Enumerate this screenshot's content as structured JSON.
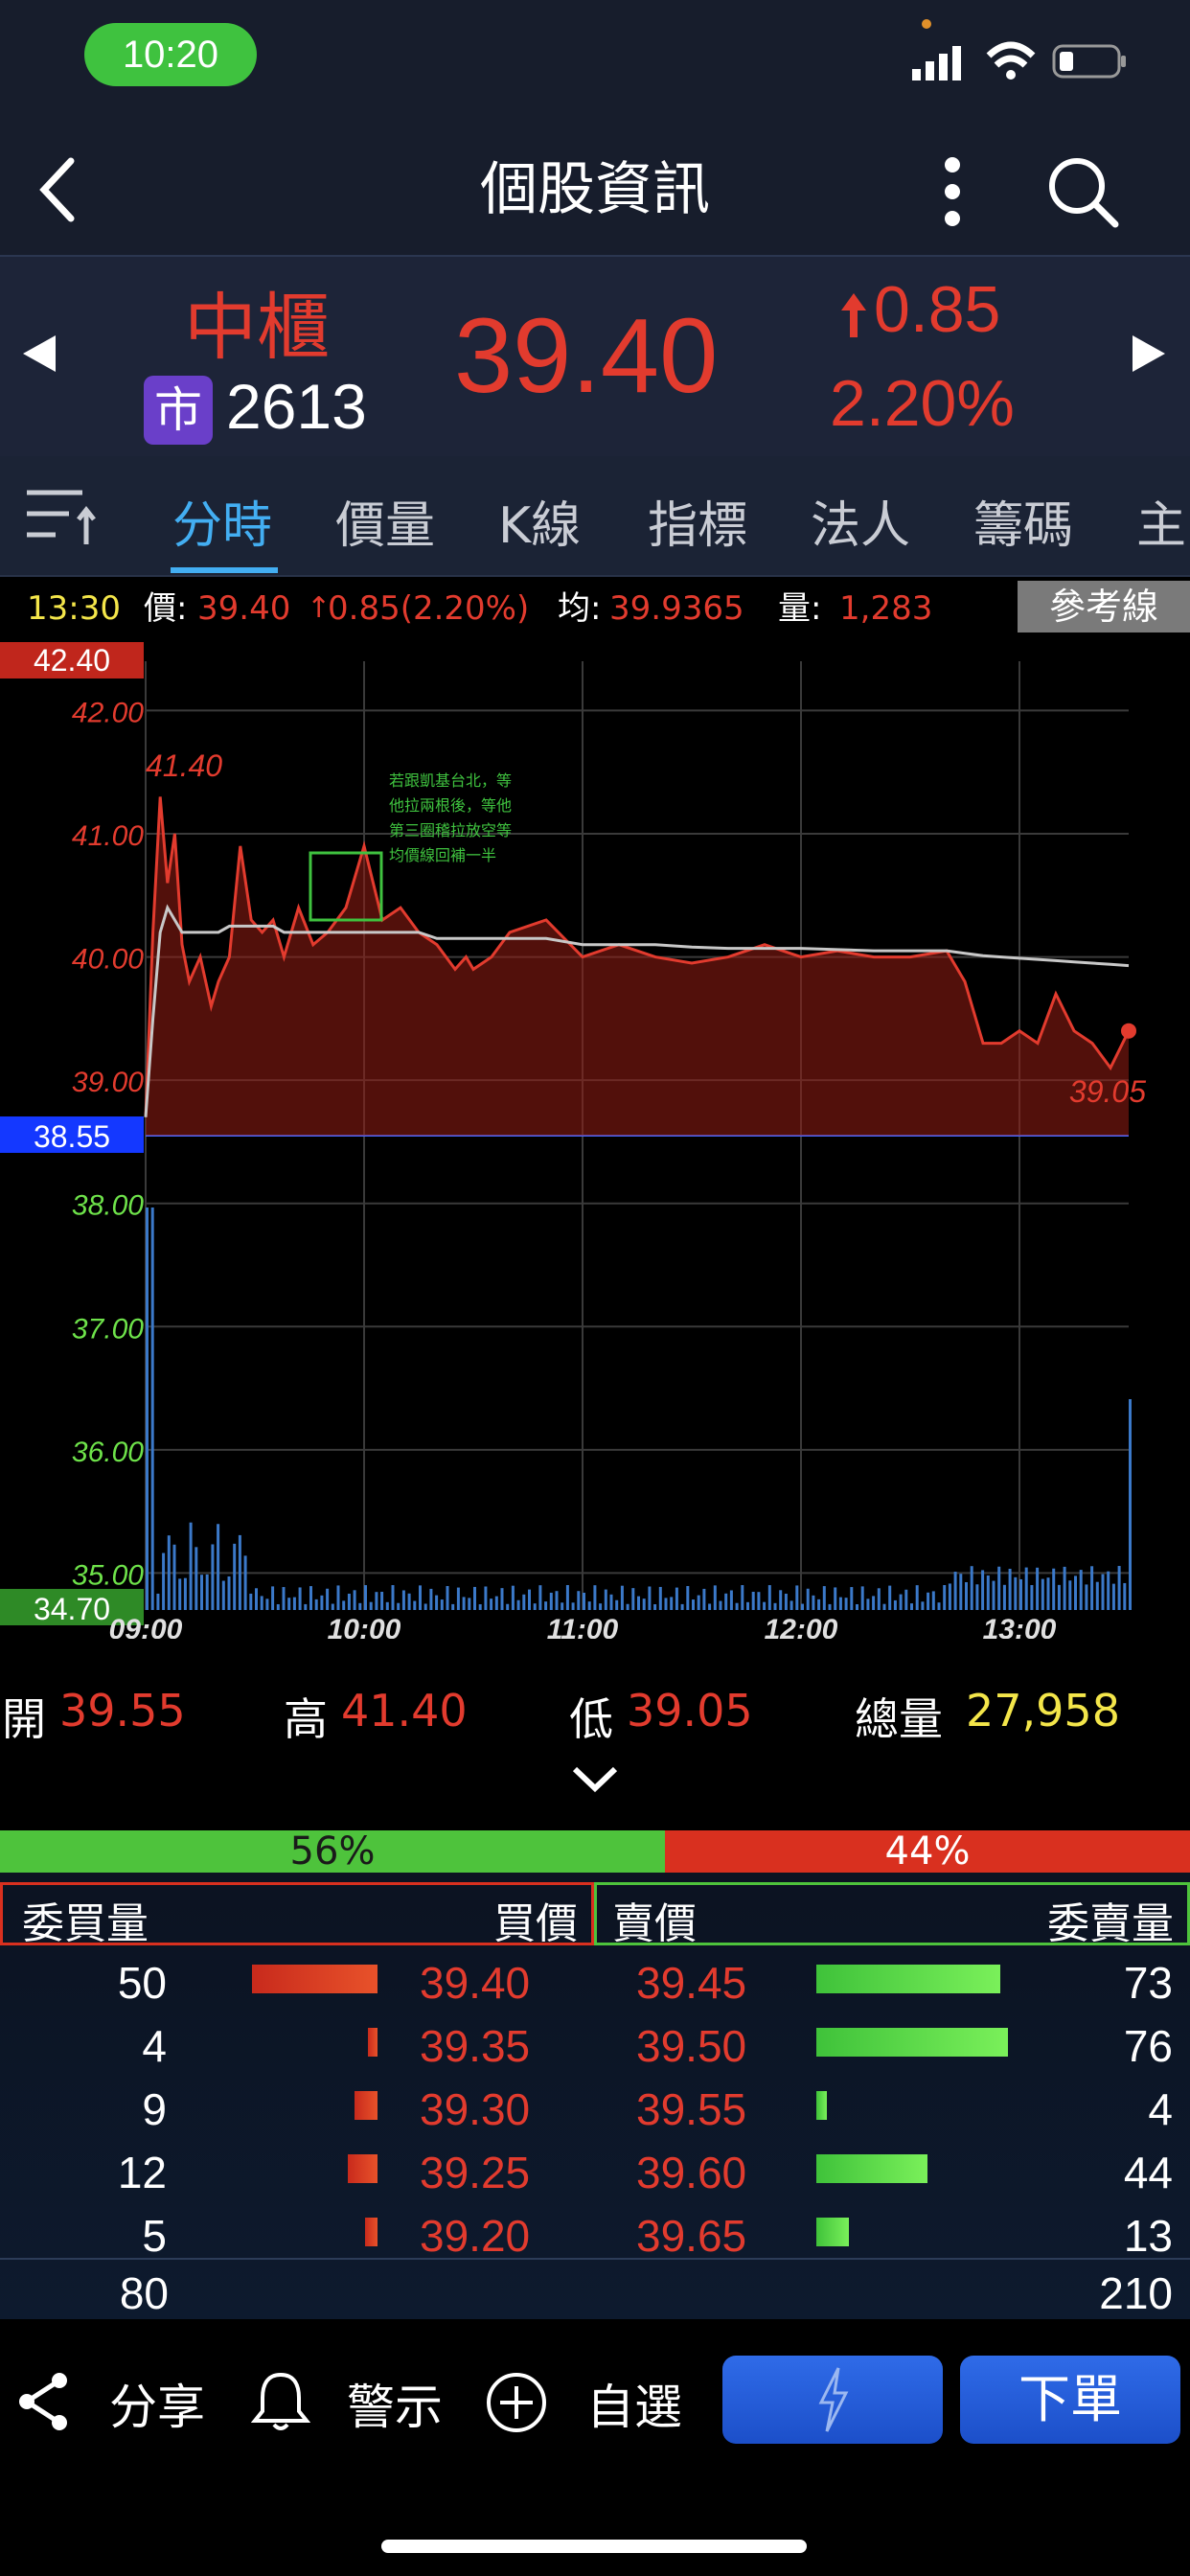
{
  "status": {
    "time": "10:20"
  },
  "nav": {
    "title": "個股資訊"
  },
  "quote": {
    "name": "中櫃",
    "market_badge": "市",
    "code": "2613",
    "price": "39.40",
    "change": "0.85",
    "change_pct": "2.20%"
  },
  "tabs": [
    "分時",
    "價量",
    "K線",
    "指標",
    "法人",
    "籌碼",
    "主"
  ],
  "info": {
    "time": "13:30",
    "price_label": "價:",
    "price": "39.40",
    "change": "0.85(2.20%)",
    "avg_label": "均:",
    "avg": "39.9365",
    "vol_label": "量:",
    "vol": "1,283",
    "ref_button": "參考線"
  },
  "chart_data": {
    "type": "line",
    "x_ticks": [
      "09:00",
      "10:00",
      "11:00",
      "12:00",
      "13:00"
    ],
    "y_ticks": [
      "42.00",
      "41.00",
      "40.00",
      "39.00",
      "38.00",
      "37.00",
      "36.00",
      "35.00"
    ],
    "y_top_label": "42.40",
    "y_ref_label": "38.55",
    "y_bottom_label": "34.70",
    "ylim": [
      34.7,
      42.4
    ],
    "reference": 38.55,
    "high_label": "41.40",
    "low_label": "39.05",
    "annotation_lines": [
      "若跟凱基台北，等",
      "他拉兩根後，等他",
      "第三圈稽拉放空等",
      "均價線回補一半"
    ],
    "series": [
      {
        "x": [
          0,
          2,
          4,
          6,
          8,
          10,
          12,
          15,
          18,
          20,
          23,
          26,
          29,
          32,
          35,
          38,
          42,
          46,
          50,
          55,
          60,
          65,
          70,
          75,
          80,
          85,
          88,
          90,
          95,
          100,
          110,
          120,
          130,
          140,
          150,
          160,
          170,
          180,
          190,
          200,
          210,
          220,
          225,
          230,
          235,
          240,
          245,
          250,
          255,
          260,
          265,
          270
        ],
        "price": [
          38.7,
          40.2,
          41.3,
          40.6,
          41.0,
          40.1,
          39.8,
          40.0,
          39.6,
          39.8,
          40.0,
          40.9,
          40.3,
          40.2,
          40.3,
          40.0,
          40.4,
          40.1,
          40.2,
          40.4,
          40.9,
          40.3,
          40.4,
          40.2,
          40.1,
          39.9,
          40.0,
          39.9,
          40.0,
          40.2,
          40.3,
          40.0,
          40.1,
          40.0,
          39.95,
          40.0,
          40.1,
          40.0,
          40.05,
          40.0,
          40.0,
          40.05,
          39.8,
          39.3,
          39.3,
          39.4,
          39.3,
          39.7,
          39.4,
          39.3,
          39.1,
          39.4
        ],
        "avg": [
          38.7,
          39.5,
          40.2,
          40.4,
          40.3,
          40.2,
          40.2,
          40.2,
          40.2,
          40.2,
          40.25,
          40.25,
          40.25,
          40.25,
          40.25,
          40.2,
          40.2,
          40.2,
          40.2,
          40.2,
          40.2,
          40.2,
          40.2,
          40.2,
          40.15,
          40.15,
          40.15,
          40.15,
          40.15,
          40.15,
          40.15,
          40.1,
          40.1,
          40.1,
          40.08,
          40.07,
          40.07,
          40.07,
          40.06,
          40.05,
          40.05,
          40.05,
          40.03,
          40.01,
          40.0,
          39.99,
          39.98,
          39.97,
          39.96,
          39.95,
          39.94,
          39.93
        ]
      }
    ]
  },
  "ohlc": {
    "open_label": "開",
    "open": "39.55",
    "high_label": "高",
    "high": "41.40",
    "low_label": "低",
    "low": "39.05",
    "total_label": "總量",
    "total": "27,958"
  },
  "book": {
    "bid_pct": "56%",
    "ask_pct": "44%",
    "headers": {
      "bid_qty": "委買量",
      "bid_price": "買價",
      "ask_price": "賣價",
      "ask_qty": "委賣量"
    },
    "rows": [
      {
        "bid_qty": "50",
        "bid_price": "39.40",
        "ask_price": "39.45",
        "ask_qty": "73"
      },
      {
        "bid_qty": "4",
        "bid_price": "39.35",
        "ask_price": "39.50",
        "ask_qty": "76"
      },
      {
        "bid_qty": "9",
        "bid_price": "39.30",
        "ask_price": "39.55",
        "ask_qty": "4"
      },
      {
        "bid_qty": "12",
        "bid_price": "39.25",
        "ask_price": "39.60",
        "ask_qty": "44"
      },
      {
        "bid_qty": "5",
        "bid_price": "39.20",
        "ask_price": "39.65",
        "ask_qty": "13"
      }
    ],
    "bid_total": "80",
    "ask_total": "210"
  },
  "bottom": {
    "share": "分享",
    "alert": "警示",
    "watch": "自選",
    "order": "下單"
  },
  "colors": {
    "up": "#e23b2e",
    "down": "#6ee24a",
    "accent": "#43aef2",
    "avg_line": "#c8c8c8"
  }
}
